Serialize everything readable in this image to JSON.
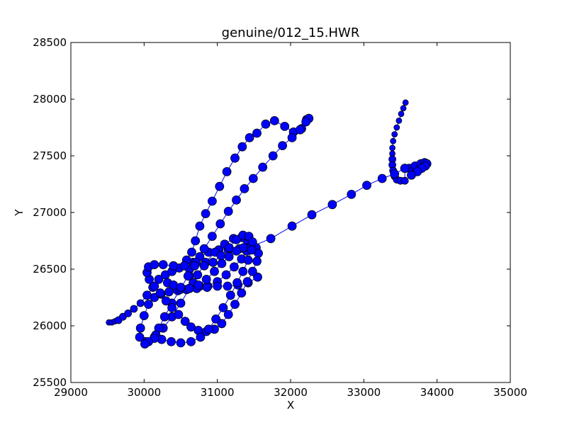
{
  "chart_data": {
    "type": "scatter",
    "title": "genuine/012_15.HWR",
    "xlabel": "X",
    "ylabel": "Y",
    "xlim": [
      29000,
      35000
    ],
    "ylim": [
      25500,
      28500
    ],
    "xticks": [
      "29000",
      "30000",
      "31000",
      "32000",
      "33000",
      "34000",
      "35000"
    ],
    "yticks": [
      "25500",
      "26000",
      "26500",
      "27000",
      "27500",
      "28000",
      "28500"
    ],
    "grid": false,
    "line_color": "#0000ff",
    "marker_color": "#0000ff",
    "marker_edge": "#000000",
    "series": [
      {
        "points": [
          [
            33570,
            27970,
            4
          ],
          [
            33540,
            27920,
            4
          ],
          [
            33510,
            27870,
            4
          ],
          [
            33480,
            27810,
            4
          ],
          [
            33450,
            27750,
            4
          ],
          [
            33420,
            27690,
            4
          ],
          [
            33400,
            27630,
            4
          ],
          [
            33390,
            27570,
            4
          ],
          [
            33390,
            27520,
            4
          ],
          [
            33390,
            27470,
            5
          ],
          [
            33390,
            27420,
            5
          ],
          [
            33400,
            27370,
            5
          ],
          [
            33420,
            27320,
            5
          ],
          [
            33450,
            27290,
            5
          ],
          [
            33500,
            27280,
            5
          ],
          [
            33560,
            27280,
            5
          ],
          [
            33560,
            27390,
            6
          ],
          [
            33620,
            27390,
            6
          ],
          [
            33700,
            27410,
            6
          ],
          [
            33780,
            27430,
            6
          ],
          [
            33830,
            27440,
            6
          ],
          [
            33860,
            27430,
            6
          ],
          [
            33840,
            27410,
            6
          ],
          [
            33790,
            27390,
            6
          ],
          [
            33730,
            27360,
            6
          ],
          [
            33650,
            27330,
            6
          ],
          [
            33560,
            27390,
            6
          ],
          [
            33420,
            27340,
            6
          ],
          [
            33250,
            27300,
            6
          ],
          [
            33040,
            27240,
            6
          ],
          [
            32830,
            27160,
            6
          ],
          [
            32570,
            27070,
            6
          ],
          [
            32290,
            26980,
            6
          ],
          [
            32020,
            26880,
            6
          ],
          [
            31730,
            26770,
            6
          ],
          [
            31470,
            26700,
            6
          ],
          [
            31300,
            26680,
            6
          ],
          [
            31150,
            26670,
            6
          ],
          [
            31020,
            26670,
            6
          ],
          [
            30880,
            26650,
            6
          ],
          [
            30760,
            26610,
            6
          ],
          [
            30670,
            26560,
            6
          ],
          [
            30620,
            26500,
            6
          ],
          [
            30620,
            26440,
            6
          ],
          [
            30670,
            26380,
            6
          ],
          [
            30760,
            26350,
            6
          ],
          [
            30870,
            26350,
            6
          ],
          [
            31000,
            26390,
            6
          ],
          [
            31120,
            26450,
            6
          ],
          [
            31230,
            26520,
            6
          ],
          [
            31330,
            26590,
            6
          ],
          [
            31400,
            26660,
            6
          ],
          [
            31430,
            26720,
            6
          ],
          [
            31400,
            26760,
            6
          ],
          [
            31330,
            26780,
            6
          ],
          [
            31220,
            26770,
            6
          ],
          [
            31100,
            26720,
            6
          ],
          [
            30970,
            26650,
            6
          ],
          [
            30840,
            26560,
            6
          ],
          [
            30730,
            26450,
            6
          ],
          [
            30620,
            26330,
            6
          ],
          [
            30500,
            26200,
            6
          ],
          [
            30380,
            26080,
            6
          ],
          [
            30260,
            25980,
            6
          ],
          [
            30140,
            25900,
            6
          ],
          [
            30020,
            25860,
            6
          ],
          [
            29940,
            25900,
            6
          ],
          [
            29950,
            25980,
            6
          ],
          [
            30000,
            26090,
            6
          ],
          [
            30060,
            26190,
            6
          ],
          [
            30140,
            26250,
            6
          ],
          [
            30230,
            26280,
            6
          ],
          [
            30340,
            26300,
            6
          ],
          [
            30460,
            26310,
            6
          ],
          [
            30580,
            26320,
            6
          ],
          [
            30720,
            26330,
            6
          ],
          [
            30860,
            26340,
            6
          ],
          [
            31000,
            26350,
            6
          ],
          [
            31140,
            26350,
            6
          ],
          [
            31280,
            26360,
            6
          ],
          [
            31420,
            26380,
            6
          ],
          [
            31550,
            26430,
            6
          ]
        ]
      },
      {
        "points": [
          [
            29520,
            26030,
            4
          ],
          [
            29560,
            26030,
            4
          ],
          [
            29600,
            26040,
            4
          ],
          [
            29650,
            26050,
            5
          ],
          [
            29710,
            26080,
            5
          ],
          [
            29780,
            26110,
            5
          ],
          [
            29860,
            26150,
            5
          ],
          [
            29950,
            26200,
            5
          ],
          [
            30040,
            26270,
            6
          ],
          [
            30120,
            26340,
            6
          ],
          [
            30200,
            26410,
            6
          ],
          [
            30290,
            26450,
            6
          ],
          [
            30380,
            26480,
            6
          ],
          [
            30480,
            26510,
            6
          ],
          [
            30580,
            26580,
            6
          ],
          [
            30650,
            26650,
            6
          ],
          [
            30700,
            26750,
            6
          ],
          [
            30760,
            26880,
            6
          ],
          [
            30840,
            26990,
            6
          ],
          [
            30930,
            27100,
            6
          ],
          [
            31030,
            27230,
            6
          ],
          [
            31130,
            27360,
            6
          ],
          [
            31240,
            27480,
            6
          ],
          [
            31340,
            27580,
            6
          ],
          [
            31440,
            27660,
            6
          ],
          [
            31540,
            27700,
            6
          ],
          [
            31660,
            27780,
            6
          ],
          [
            31780,
            27810,
            6
          ],
          [
            31920,
            27760,
            6
          ],
          [
            32040,
            27710,
            6
          ],
          [
            32150,
            27740,
            6
          ],
          [
            32220,
            27820,
            6
          ],
          [
            32250,
            27830,
            6
          ],
          [
            32210,
            27800,
            6
          ],
          [
            32130,
            27730,
            6
          ],
          [
            32020,
            27660,
            6
          ],
          [
            31890,
            27590,
            6
          ],
          [
            31760,
            27500,
            6
          ],
          [
            31620,
            27400,
            6
          ],
          [
            31490,
            27300,
            6
          ],
          [
            31370,
            27210,
            6
          ],
          [
            31260,
            27110,
            6
          ],
          [
            31150,
            27010,
            6
          ],
          [
            31040,
            26900,
            6
          ],
          [
            30930,
            26790,
            6
          ],
          [
            30820,
            26680,
            6
          ],
          [
            30710,
            26560,
            6
          ],
          [
            30600,
            26440,
            6
          ],
          [
            30490,
            26320,
            6
          ],
          [
            30380,
            26200,
            6
          ],
          [
            30280,
            26080,
            6
          ],
          [
            30200,
            25980,
            6
          ],
          [
            30160,
            25920,
            6
          ]
        ]
      },
      {
        "points": [
          [
            30320,
            26380,
            6
          ],
          [
            30400,
            26360,
            6
          ],
          [
            30500,
            26340,
            6
          ],
          [
            30620,
            26330,
            6
          ],
          [
            30740,
            26360,
            6
          ],
          [
            30850,
            26410,
            6
          ],
          [
            30960,
            26480,
            6
          ],
          [
            31060,
            26550,
            6
          ],
          [
            31160,
            26610,
            6
          ],
          [
            31260,
            26660,
            6
          ],
          [
            31360,
            26690,
            6
          ],
          [
            31460,
            26700,
            6
          ],
          [
            31530,
            26690,
            6
          ],
          [
            31560,
            26640,
            6
          ],
          [
            31540,
            26570,
            6
          ],
          [
            31480,
            26480,
            6
          ],
          [
            31410,
            26390,
            6
          ],
          [
            31330,
            26290,
            6
          ],
          [
            31240,
            26190,
            6
          ],
          [
            31150,
            26100,
            6
          ],
          [
            31060,
            26020,
            6
          ],
          [
            30960,
            25970,
            6
          ],
          [
            30850,
            25950,
            6
          ],
          [
            30740,
            25960,
            6
          ],
          [
            30640,
            25990,
            6
          ],
          [
            30560,
            26040,
            6
          ],
          [
            30470,
            26100,
            6
          ],
          [
            30380,
            26160,
            6
          ],
          [
            30300,
            26220,
            6
          ],
          [
            30220,
            26290,
            6
          ],
          [
            30140,
            26350,
            6
          ],
          [
            30070,
            26410,
            6
          ],
          [
            30040,
            26470,
            6
          ],
          [
            30060,
            26520,
            6
          ],
          [
            30140,
            26540,
            6
          ],
          [
            30260,
            26540,
            6
          ],
          [
            30400,
            26530,
            6
          ],
          [
            30550,
            26530,
            6
          ],
          [
            30690,
            26530,
            6
          ],
          [
            30820,
            26530,
            6
          ],
          [
            30940,
            26560,
            6
          ],
          [
            31050,
            26620,
            6
          ],
          [
            31160,
            26690,
            6
          ],
          [
            31260,
            26760,
            6
          ],
          [
            31350,
            26800,
            6
          ],
          [
            31430,
            26790,
            6
          ],
          [
            31480,
            26740,
            6
          ],
          [
            31470,
            26670,
            6
          ],
          [
            31420,
            26580,
            6
          ],
          [
            31350,
            26480,
            6
          ],
          [
            31270,
            26380,
            6
          ],
          [
            31180,
            26270,
            6
          ],
          [
            31080,
            26160,
            6
          ],
          [
            30980,
            26060,
            6
          ],
          [
            30880,
            25970,
            6
          ],
          [
            30770,
            25900,
            6
          ],
          [
            30640,
            25860,
            6
          ],
          [
            30500,
            25850,
            6
          ],
          [
            30370,
            25860,
            6
          ],
          [
            30240,
            25880,
            6
          ],
          [
            30140,
            25890,
            6
          ],
          [
            30060,
            25860,
            6
          ],
          [
            30010,
            25840,
            6
          ]
        ]
      }
    ]
  }
}
